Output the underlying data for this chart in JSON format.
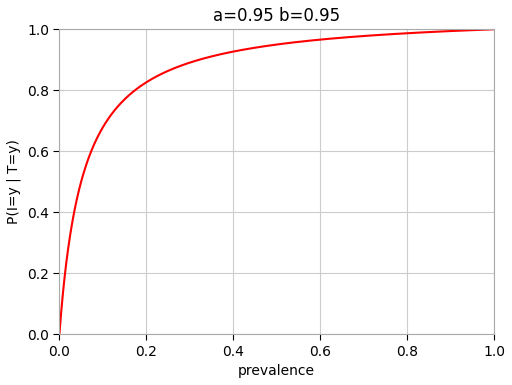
{
  "title": "a=0.95 b=0.95",
  "xlabel": "prevalence",
  "ylabel": "P(I=y | T=y)",
  "a": 0.95,
  "b": 0.95,
  "xlim": [
    0.0,
    1.0
  ],
  "ylim": [
    0.0,
    1.0
  ],
  "xticks": [
    0.0,
    0.2,
    0.4,
    0.6,
    0.8,
    1.0
  ],
  "yticks": [
    0.0,
    0.2,
    0.4,
    0.6,
    0.8,
    1.0
  ],
  "line_color": "red",
  "line_width": 1.5,
  "grid": true,
  "grid_color": "#cccccc",
  "ax_background_color": "#ffffff",
  "fig_background_color": "#ffffff",
  "n_points": 1000,
  "spine_color": "#aaaaaa",
  "title_fontsize": 12,
  "label_fontsize": 10,
  "tick_fontsize": 10
}
